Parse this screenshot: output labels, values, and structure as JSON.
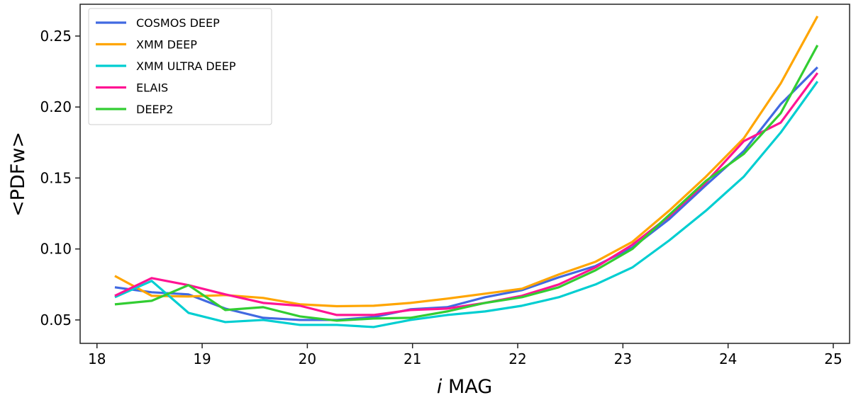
{
  "chart_data": {
    "type": "line",
    "title": "",
    "xlabel_italic": "i",
    "xlabel": "MAG",
    "ylabel": "<PDFw>",
    "xlim": [
      17.84,
      25.155
    ],
    "ylim": [
      0.0335,
      0.2724
    ],
    "xticks": [
      "18",
      "19",
      "20",
      "21",
      "22",
      "23",
      "24",
      "25"
    ],
    "yticks": [
      "0.05",
      "0.10",
      "0.15",
      "0.20",
      "0.25"
    ],
    "grid": false,
    "legend_position": "top-left",
    "x": [
      18.17,
      18.52,
      18.87,
      19.22,
      19.58,
      19.93,
      20.28,
      20.63,
      20.98,
      21.33,
      21.69,
      22.04,
      22.39,
      22.74,
      23.09,
      23.44,
      23.79,
      24.15,
      24.5,
      24.85
    ],
    "series": [
      {
        "name": "COSMOS DEEP",
        "color": "#4169e1",
        "values": [
          0.073,
          0.0695,
          0.068,
          0.058,
          0.0515,
          0.05,
          0.05,
          0.052,
          0.0575,
          0.059,
          0.066,
          0.071,
          0.08,
          0.088,
          0.101,
          0.121,
          0.145,
          0.169,
          0.202,
          0.228
        ]
      },
      {
        "name": "XMM DEEP",
        "color": "#ffa500",
        "values": [
          0.081,
          0.067,
          0.0665,
          0.0675,
          0.0655,
          0.061,
          0.0597,
          0.06,
          0.062,
          0.065,
          0.0685,
          0.072,
          0.082,
          0.091,
          0.105,
          0.127,
          0.151,
          0.178,
          0.2166,
          0.264
        ]
      },
      {
        "name": "XMM ULTRA DEEP",
        "color": "#00ced1",
        "values": [
          0.066,
          0.0775,
          0.055,
          0.0485,
          0.05,
          0.0465,
          0.0465,
          0.045,
          0.05,
          0.0535,
          0.056,
          0.06,
          0.066,
          0.075,
          0.087,
          0.106,
          0.127,
          0.151,
          0.182,
          0.218
        ]
      },
      {
        "name": "ELAIS",
        "color": "#ff1493",
        "values": [
          0.067,
          0.0795,
          0.0745,
          0.068,
          0.062,
          0.06,
          0.0535,
          0.0535,
          0.057,
          0.058,
          0.062,
          0.067,
          0.075,
          0.087,
          0.103,
          0.123,
          0.147,
          0.176,
          0.189,
          0.224
        ]
      },
      {
        "name": "DEEP2",
        "color": "#32cd32",
        "values": [
          0.061,
          0.0635,
          0.0745,
          0.057,
          0.059,
          0.0525,
          0.0495,
          0.051,
          0.0515,
          0.056,
          0.062,
          0.066,
          0.073,
          0.085,
          0.1,
          0.124,
          0.148,
          0.167,
          0.1956,
          0.2435
        ]
      }
    ]
  }
}
